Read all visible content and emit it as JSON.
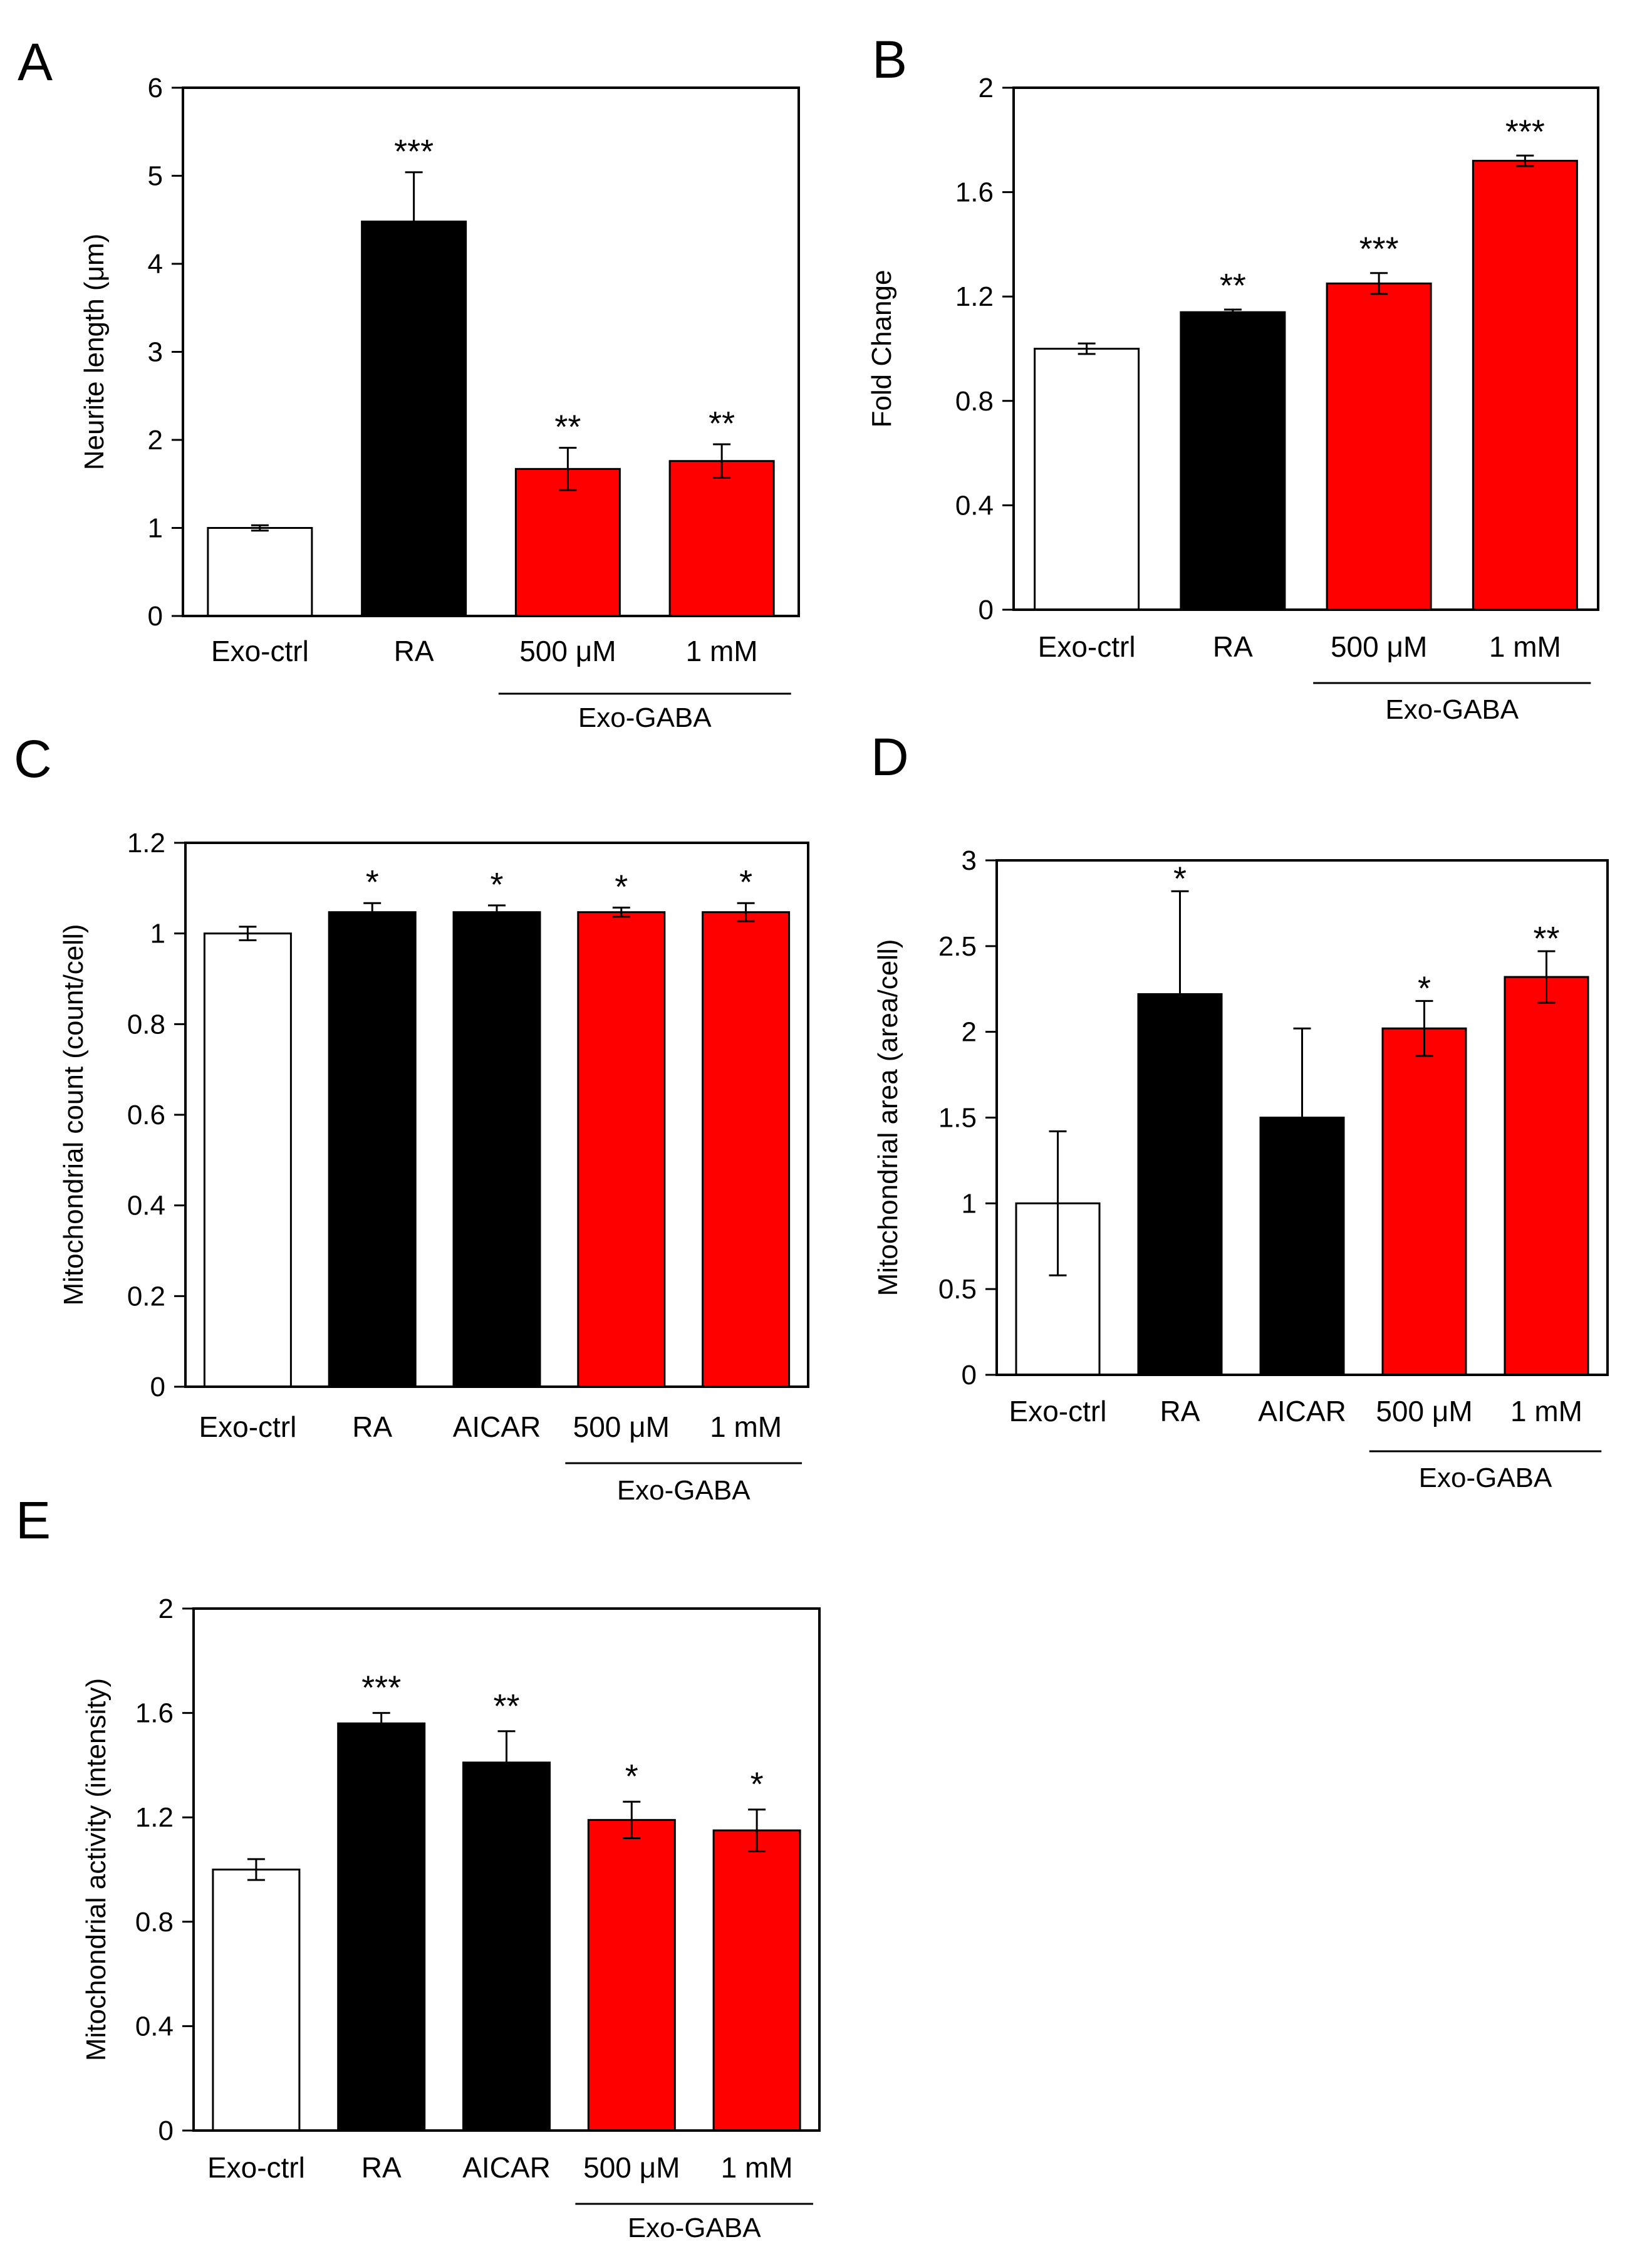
{
  "colors": {
    "control": "#ffffff",
    "reference": "#000000",
    "gaba": "#ff0000"
  },
  "chart_data": [
    {
      "panel": "A",
      "type": "bar",
      "title": "",
      "xlabel": "",
      "ylabel": "Neurite length (μm)",
      "ylim": [
        0,
        6
      ],
      "yticks": [
        0,
        1,
        2,
        3,
        4,
        5,
        6
      ],
      "ytick_labels": [
        "0",
        "1",
        "2",
        "3",
        "4",
        "5",
        "6"
      ],
      "categories": [
        "Exo-ctrl",
        "RA",
        "500 μM",
        "1 mM"
      ],
      "values": [
        1.0,
        4.48,
        1.67,
        1.76
      ],
      "errors": [
        0.03,
        0.56,
        0.24,
        0.19
      ],
      "significance": [
        "",
        "***",
        "**",
        "**"
      ],
      "bar_colors": [
        "#ffffff",
        "#000000",
        "#ff0000",
        "#ff0000"
      ],
      "group": {
        "label": "Exo-GABA",
        "from": 2,
        "to": 3
      }
    },
    {
      "panel": "B",
      "type": "bar",
      "title": "",
      "xlabel": "",
      "ylabel": "Fold Change",
      "ylim": [
        0,
        2
      ],
      "yticks": [
        0,
        0.4,
        0.8,
        1.2,
        1.6,
        2
      ],
      "ytick_labels": [
        "0",
        "0.4",
        "0.8",
        "1.2",
        "1.6",
        "2"
      ],
      "categories": [
        "Exo-ctrl",
        "RA",
        "500 μM",
        "1 mM"
      ],
      "values": [
        1.0,
        1.14,
        1.25,
        1.72
      ],
      "errors": [
        0.02,
        0.01,
        0.04,
        0.02
      ],
      "significance": [
        "",
        "**",
        "***",
        "***"
      ],
      "bar_colors": [
        "#ffffff",
        "#000000",
        "#ff0000",
        "#ff0000"
      ],
      "group": {
        "label": "Exo-GABA",
        "from": 2,
        "to": 3
      }
    },
    {
      "panel": "C",
      "type": "bar",
      "title": "",
      "xlabel": "",
      "ylabel": "Mitochondrial count  (count/cell)",
      "ylim": [
        0,
        1.2
      ],
      "yticks": [
        0,
        0.2,
        0.4,
        0.6,
        0.8,
        1,
        1.2
      ],
      "ytick_labels": [
        "0",
        "0.2",
        "0.4",
        "0.6",
        "0.8",
        "1",
        "1.2"
      ],
      "categories": [
        "Exo-ctrl",
        "RA",
        "AICAR",
        "500 μM",
        "1 mM"
      ],
      "values": [
        1.0,
        1.047,
        1.047,
        1.047,
        1.047
      ],
      "errors": [
        0.015,
        0.02,
        0.015,
        0.01,
        0.02
      ],
      "significance": [
        "",
        "*",
        "*",
        "*",
        "*"
      ],
      "bar_colors": [
        "#ffffff",
        "#000000",
        "#000000",
        "#ff0000",
        "#ff0000"
      ],
      "group": {
        "label": "Exo-GABA",
        "from": 3,
        "to": 4
      }
    },
    {
      "panel": "D",
      "type": "bar",
      "title": "",
      "xlabel": "",
      "ylabel": "Mitochondrial area (area/cell)",
      "ylim": [
        0,
        3
      ],
      "yticks": [
        0,
        0.5,
        1,
        1.5,
        2,
        2.5,
        3
      ],
      "ytick_labels": [
        "0",
        "0.5",
        "1",
        "1.5",
        "2",
        "2.5",
        "3"
      ],
      "categories": [
        "Exo-ctrl",
        "RA",
        "AICAR",
        "500 μM",
        "1 mM"
      ],
      "values": [
        1.0,
        2.22,
        1.5,
        2.02,
        2.32
      ],
      "errors": [
        0.42,
        0.6,
        0.52,
        0.16,
        0.15
      ],
      "significance": [
        "",
        "*",
        "",
        "*",
        "**"
      ],
      "bar_colors": [
        "#ffffff",
        "#000000",
        "#000000",
        "#ff0000",
        "#ff0000"
      ],
      "group": {
        "label": "Exo-GABA",
        "from": 3,
        "to": 4
      }
    },
    {
      "panel": "E",
      "type": "bar",
      "title": "",
      "xlabel": "",
      "ylabel": "Mitochondrial activity (intensity)",
      "ylim": [
        0,
        2
      ],
      "yticks": [
        0,
        0.4,
        0.8,
        1.2,
        1.6,
        2
      ],
      "ytick_labels": [
        "0",
        "0.4",
        "0.8",
        "1.2",
        "1.6",
        "2"
      ],
      "categories": [
        "Exo-ctrl",
        "RA",
        "AICAR",
        "500 μM",
        "1 mM"
      ],
      "values": [
        1.0,
        1.56,
        1.41,
        1.19,
        1.15
      ],
      "errors": [
        0.04,
        0.04,
        0.12,
        0.07,
        0.08
      ],
      "significance": [
        "",
        "***",
        "**",
        "*",
        "*"
      ],
      "bar_colors": [
        "#ffffff",
        "#000000",
        "#000000",
        "#ff0000",
        "#ff0000"
      ],
      "group": {
        "label": "Exo-GABA",
        "from": 3,
        "to": 4
      }
    }
  ]
}
